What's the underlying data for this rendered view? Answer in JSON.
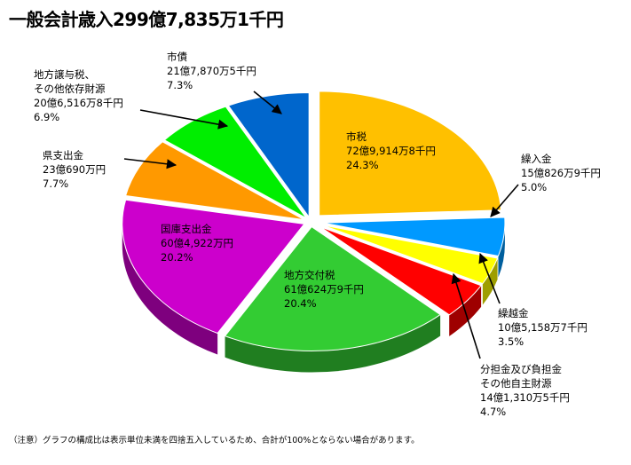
{
  "title": "一般会計歳入299億7,835万1千円",
  "note": "（注意）グラフの構成比は表示単位未満を四捨五入しているため、合計が100%とならない場合があります。",
  "chart_data": {
    "type": "pie",
    "title": "一般会計歳入299億7,835万1千円",
    "slices": [
      {
        "name": "市税",
        "amount": "72億9,914万8千円",
        "percent": 24.3,
        "color": "#ffc000"
      },
      {
        "name": "繰入金",
        "amount": "15億826万9千円",
        "percent": 5.0,
        "color": "#0099ff"
      },
      {
        "name": "繰越金",
        "amount": "10億5,158万7千円",
        "percent": 3.5,
        "color": "#ffff00"
      },
      {
        "name": "分担金及び負担金\nその他自主財源",
        "amount": "14億1,310万5千円",
        "percent": 4.7,
        "color": "#ff0000"
      },
      {
        "name": "地方交付税",
        "amount": "61億624万9千円",
        "percent": 20.4,
        "color": "#33cc33"
      },
      {
        "name": "国庫支出金",
        "amount": "60億4,922万円",
        "percent": 20.2,
        "color": "#cc00cc"
      },
      {
        "name": "県支出金",
        "amount": "23億690万円",
        "percent": 7.7,
        "color": "#ff9900"
      },
      {
        "name": "地方譲与税、\nその他依存財源",
        "amount": "20億6,516万8千円",
        "percent": 6.9,
        "color": "#00ee00"
      },
      {
        "name": "市債",
        "amount": "21億7,870万5千円",
        "percent": 7.3,
        "color": "#0066cc"
      }
    ]
  }
}
